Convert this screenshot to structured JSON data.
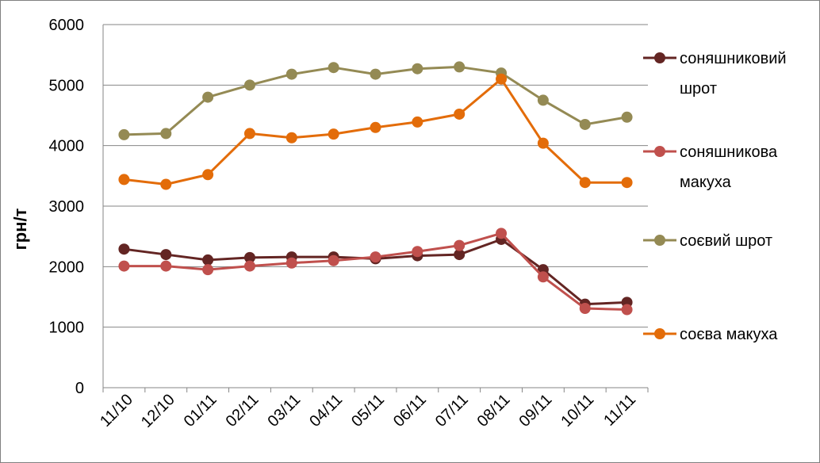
{
  "chart_data": {
    "type": "line",
    "title": "",
    "xlabel": "",
    "ylabel": "грн/т",
    "ylim": [
      0,
      6000
    ],
    "yticks": [
      "0",
      "1000",
      "2000",
      "3000",
      "4000",
      "5000",
      "6000"
    ],
    "categories": [
      "11/10",
      "12/10",
      "01/11",
      "02/11",
      "03/11",
      "04/11",
      "05/11",
      "06/11",
      "07/11",
      "08/11",
      "09/11",
      "10/11",
      "11/11"
    ],
    "grid": "horizontal",
    "legend_position": "right",
    "series": [
      {
        "name": "соняшниковий шрот",
        "legend_lines": [
          "соняшниковий",
          "шрот"
        ],
        "color": "#632523",
        "values": [
          2290,
          2200,
          2110,
          2150,
          2160,
          2160,
          2130,
          2180,
          2200,
          2450,
          1950,
          1380,
          1410
        ]
      },
      {
        "name": "соняшникова макуха",
        "legend_lines": [
          "соняшникова",
          "макуха"
        ],
        "color": "#C0504D",
        "values": [
          2010,
          2010,
          1950,
          2010,
          2060,
          2100,
          2160,
          2250,
          2350,
          2550,
          1830,
          1310,
          1290
        ]
      },
      {
        "name": "соєвий шрот",
        "legend_lines": [
          "соєвий шрот"
        ],
        "color": "#948A54",
        "values": [
          4180,
          4200,
          4800,
          5000,
          5180,
          5290,
          5180,
          5270,
          5300,
          5200,
          4750,
          4350,
          4470
        ]
      },
      {
        "name": "соєва макуха",
        "legend_lines": [
          "соєва макуха"
        ],
        "color": "#E36C09",
        "values": [
          3440,
          3360,
          3520,
          4200,
          4130,
          4190,
          4300,
          4390,
          4520,
          5100,
          4040,
          3390,
          3390
        ]
      }
    ]
  }
}
